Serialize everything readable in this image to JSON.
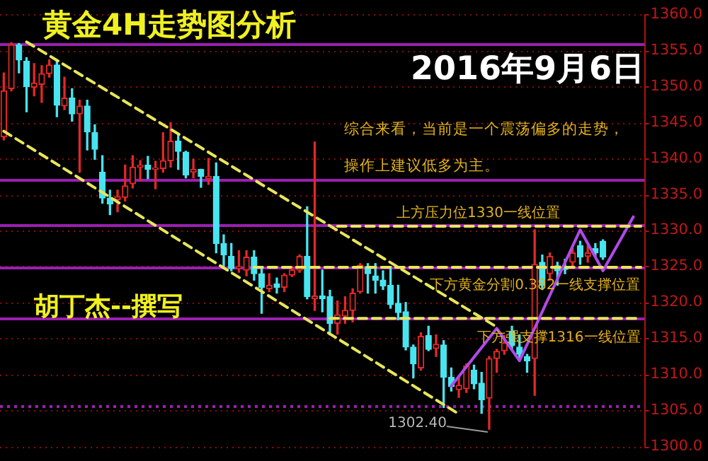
{
  "chart_data": {
    "type": "candlestick",
    "title": "黄金4H走势图分析",
    "subtitle": "2016年9月6日",
    "annotations": [
      "综合来看，当前是一个震荡偏多的走势，",
      "操作上建议低多为主。",
      {
        "text": "上方压力位1330一线位置",
        "y": 1330.6
      },
      {
        "text": "下方黄金分割0.382一线支撑位置",
        "y": 1324.9
      },
      {
        "text": "下方强支撑1316一线位置",
        "y": 1317.8
      },
      "胡丁杰--撰写",
      "1302.40"
    ],
    "categories": [
      null,
      null,
      null,
      null,
      null,
      null,
      null,
      null,
      null,
      null,
      null,
      null,
      null,
      null,
      null,
      null,
      null,
      null,
      null,
      null,
      null,
      null,
      null,
      null,
      null,
      null,
      null,
      null,
      null,
      null,
      null,
      null,
      null,
      null,
      null,
      null,
      null,
      null,
      null,
      null,
      null,
      null,
      null,
      null,
      null,
      null,
      null,
      null,
      null,
      null,
      null,
      null,
      null,
      null,
      null,
      null,
      null,
      null,
      null,
      null,
      null,
      null,
      null,
      null,
      null,
      null,
      null,
      null,
      null,
      null,
      null,
      null,
      null,
      null,
      null,
      null,
      null,
      null,
      null,
      null,
      null,
      null,
      null,
      null,
      null
    ],
    "ohlc": [
      [
        1343,
        1351.9,
        1342.6,
        1349.4
      ],
      [
        1349.7,
        1356.1,
        1349.4,
        1355.8
      ],
      [
        1355.8,
        1356,
        1351.9,
        1353.7
      ],
      [
        1353.5,
        1354,
        1346.5,
        1350
      ],
      [
        1349.9,
        1353.2,
        1348.7,
        1350.5
      ],
      [
        1350.3,
        1352.9,
        1347.8,
        1351.8
      ],
      [
        1351.8,
        1353.7,
        1351.3,
        1353
      ],
      [
        1353,
        1353.5,
        1345.8,
        1347.4
      ],
      [
        1347.3,
        1351.3,
        1346.8,
        1348.4
      ],
      [
        1348.4,
        1349.7,
        1345.2,
        1346.2
      ],
      [
        1346.2,
        1348.1,
        1338.1,
        1347.3
      ],
      [
        1347.3,
        1348.1,
        1341.2,
        1343.7
      ],
      [
        1343.6,
        1344.7,
        1339.9,
        1341.3
      ],
      [
        1338.1,
        1340.4,
        1333.8,
        1334.5
      ],
      [
        1334.5,
        1335.6,
        1332.2,
        1333.7
      ],
      [
        1334.3,
        1335.6,
        1332.6,
        1334.7
      ],
      [
        1334.6,
        1339.1,
        1334.1,
        1336.2
      ],
      [
        1336.5,
        1340.4,
        1335.9,
        1338.8
      ],
      [
        1338.8,
        1339.7,
        1336.9,
        1339.1
      ],
      [
        1339.1,
        1340.3,
        1337.2,
        1338.5
      ],
      [
        1338.5,
        1339.6,
        1335.8,
        1338.7
      ],
      [
        1338.6,
        1343.6,
        1338.1,
        1339.7
      ],
      [
        1339.7,
        1345,
        1338.8,
        1342.4
      ],
      [
        1342.4,
        1343.3,
        1338.5,
        1341
      ],
      [
        1340.9,
        1341,
        1337.3,
        1337.7
      ],
      [
        1338.1,
        1339.9,
        1337.3,
        1338.5
      ],
      [
        1338.5,
        1338.5,
        1336,
        1337.5
      ],
      [
        1337.2,
        1340,
        1336.4,
        1337.5
      ],
      [
        1337.5,
        1339.4,
        1326.9,
        1328.2
      ],
      [
        1328.2,
        1329.4,
        1325,
        1326.6
      ],
      [
        1326.4,
        1328.2,
        1324.4,
        1324.7
      ],
      [
        1324.7,
        1327.2,
        1324.2,
        1325
      ],
      [
        1324.5,
        1327.2,
        1323.7,
        1326.3
      ],
      [
        1326.3,
        1327.2,
        1323.1,
        1324
      ],
      [
        1324,
        1325,
        1318.5,
        1322.1
      ],
      [
        1321.9,
        1324,
        1321.5,
        1322.4
      ],
      [
        1322.6,
        1323.4,
        1321.3,
        1322.1
      ],
      [
        1322.1,
        1324,
        1321.5,
        1323.8
      ],
      [
        1323.8,
        1325,
        1323.6,
        1324.5
      ],
      [
        1324.5,
        1326.6,
        1324.2,
        1326.4
      ],
      [
        1326.4,
        1333.3,
        1320.5,
        1320.8
      ],
      [
        1320.5,
        1342.3,
        1318.9,
        1320.9
      ],
      [
        1320.9,
        1324.5,
        1318.7,
        1320.5
      ],
      [
        1320.8,
        1321.7,
        1315.5,
        1317.1
      ],
      [
        1317.1,
        1320.2,
        1315.6,
        1318.3
      ],
      [
        1318.1,
        1320.8,
        1317.1,
        1318.9
      ],
      [
        1318.9,
        1321.9,
        1317.3,
        1321.3
      ],
      [
        1321.5,
        1325.4,
        1321.3,
        1325.2
      ],
      [
        1325,
        1325.4,
        1321.3,
        1324
      ],
      [
        1323.7,
        1325.4,
        1321.3,
        1323.1
      ],
      [
        1323.1,
        1324.4,
        1321.8,
        1322.3
      ],
      [
        1322.4,
        1325,
        1319.2,
        1319.7
      ],
      [
        1319.9,
        1322.4,
        1317.6,
        1318.6
      ],
      [
        1318.7,
        1320,
        1313.4,
        1313.8
      ],
      [
        1313.8,
        1314.1,
        1309.5,
        1311.5
      ],
      [
        1310.9,
        1315.8,
        1310.6,
        1315.3
      ],
      [
        1315.4,
        1316.7,
        1313.3,
        1313.5
      ],
      [
        1313.6,
        1315.5,
        1312.5,
        1314.2
      ],
      [
        1314.1,
        1314.7,
        1305.4,
        1309.6
      ],
      [
        1309.6,
        1310.9,
        1307.7,
        1308.3
      ],
      [
        1307.9,
        1309.5,
        1306.8,
        1308.5
      ],
      [
        1308,
        1311.5,
        1307.5,
        1311.2
      ],
      [
        1310.6,
        1311.3,
        1308,
        1308.7
      ],
      [
        1308.8,
        1310.3,
        1304.6,
        1306.5
      ],
      [
        1306.7,
        1312.5,
        1302.4,
        1312.2
      ],
      [
        1312.2,
        1313.5,
        1310.3,
        1313.2
      ],
      [
        1313.3,
        1315.4,
        1312.8,
        1314.4
      ],
      [
        1316,
        1316.7,
        1313.5,
        1314
      ],
      [
        1313.8,
        1315.5,
        1312.3,
        1312.8
      ],
      [
        1312.5,
        1312.8,
        1310.3,
        1311.9
      ],
      [
        1312.2,
        1330.1,
        1307.1,
        1325.3
      ],
      [
        1325.6,
        1326.6,
        1321.8,
        1322.4
      ],
      [
        1324,
        1326.9,
        1323.1,
        1326.4
      ],
      [
        1325.1,
        1325.6,
        1322.4,
        1324.4
      ],
      [
        1325,
        1326,
        1324,
        1324.6
      ],
      [
        1325.6,
        1327.5,
        1325,
        1326.9
      ],
      [
        1327.9,
        1328.5,
        1325.3,
        1326.3
      ],
      [
        1326.4,
        1327.9,
        1325.6,
        1326.9
      ],
      [
        1327.5,
        1328.2,
        1326.3,
        1326.9
      ],
      [
        1328.5,
        1328.7,
        1326,
        1326.3
      ],
      null,
      null,
      null,
      null,
      null
    ],
    "series": [
      {
        "type": "line",
        "color": "#e6e65a",
        "line_style": "dashed",
        "values": [
          null,
          null,
          null,
          1356.2,
          null,
          null,
          null,
          null,
          null,
          null,
          null,
          null,
          null,
          null,
          null,
          null,
          null,
          null,
          null,
          null,
          null,
          null,
          null,
          null,
          null,
          null,
          null,
          null,
          null,
          null,
          null,
          null,
          null,
          null,
          null,
          null,
          null,
          null,
          null,
          null,
          null,
          null,
          null,
          null,
          null,
          null,
          null,
          null,
          null,
          null,
          null,
          null,
          null,
          null,
          null,
          null,
          null,
          null,
          null,
          null,
          null,
          null,
          null,
          null,
          null,
          1316.6,
          null,
          null,
          null,
          null,
          null,
          null,
          null,
          null,
          null,
          null,
          null,
          null,
          null,
          null,
          null,
          null,
          null,
          null,
          null
        ]
      },
      {
        "type": "line",
        "color": "#e6e65a",
        "line_style": "dashed",
        "values": [
          1343.8,
          null,
          null,
          null,
          null,
          null,
          null,
          null,
          null,
          null,
          null,
          null,
          null,
          null,
          null,
          null,
          null,
          null,
          null,
          null,
          null,
          null,
          null,
          null,
          null,
          null,
          null,
          null,
          null,
          null,
          null,
          null,
          null,
          null,
          null,
          null,
          null,
          null,
          null,
          null,
          null,
          null,
          null,
          null,
          null,
          null,
          null,
          null,
          null,
          null,
          null,
          null,
          null,
          null,
          null,
          null,
          null,
          null,
          null,
          null,
          1304.5,
          null,
          null,
          null,
          null,
          null,
          null,
          null,
          null,
          null,
          null,
          null,
          null,
          null,
          null,
          null,
          null,
          null,
          null,
          null,
          null,
          null,
          null,
          null,
          null
        ]
      },
      {
        "type": "line",
        "color": "#e6e65a",
        "line_style": "dashed",
        "values": [
          null,
          null,
          null,
          null,
          null,
          null,
          null,
          null,
          null,
          null,
          null,
          null,
          null,
          null,
          null,
          null,
          null,
          null,
          null,
          null,
          null,
          null,
          null,
          null,
          null,
          null,
          null,
          null,
          null,
          null,
          null,
          null,
          null,
          null,
          null,
          null,
          null,
          null,
          null,
          null,
          null,
          null,
          null,
          null,
          1330.6,
          null,
          null,
          null,
          null,
          null,
          null,
          null,
          null,
          null,
          null,
          null,
          null,
          null,
          null,
          null,
          null,
          null,
          null,
          null,
          null,
          null,
          null,
          null,
          null,
          null,
          null,
          null,
          null,
          null,
          null,
          null,
          null,
          null,
          null,
          null,
          null,
          null,
          null,
          null,
          1330.6
        ]
      },
      {
        "type": "line",
        "color": "#e6e65a",
        "line_style": "dashed",
        "values": [
          null,
          null,
          null,
          null,
          null,
          null,
          null,
          null,
          null,
          null,
          null,
          null,
          null,
          null,
          null,
          null,
          null,
          null,
          null,
          null,
          null,
          null,
          null,
          null,
          null,
          null,
          null,
          null,
          null,
          null,
          null,
          null,
          null,
          1324.9,
          null,
          null,
          null,
          null,
          null,
          null,
          null,
          null,
          null,
          null,
          null,
          null,
          null,
          null,
          null,
          null,
          null,
          null,
          null,
          null,
          null,
          null,
          null,
          null,
          null,
          null,
          null,
          null,
          null,
          null,
          null,
          null,
          null,
          null,
          null,
          null,
          null,
          null,
          null,
          null,
          null,
          null,
          null,
          null,
          null,
          null,
          null,
          null,
          null,
          null,
          1324.9
        ]
      },
      {
        "type": "line",
        "color": "#e6e65a",
        "line_style": "dashed",
        "values": [
          null,
          null,
          null,
          null,
          null,
          null,
          null,
          null,
          null,
          null,
          null,
          null,
          null,
          null,
          null,
          null,
          null,
          null,
          null,
          null,
          null,
          null,
          null,
          null,
          null,
          null,
          null,
          null,
          null,
          null,
          null,
          null,
          null,
          null,
          null,
          null,
          null,
          null,
          null,
          null,
          null,
          null,
          null,
          1317.8,
          null,
          null,
          null,
          null,
          null,
          null,
          null,
          null,
          null,
          null,
          null,
          null,
          null,
          null,
          null,
          null,
          null,
          null,
          null,
          null,
          null,
          null,
          null,
          null,
          null,
          null,
          null,
          null,
          null,
          null,
          null,
          null,
          null,
          null,
          null,
          null,
          null,
          null,
          null,
          null,
          1317.8
        ]
      },
      {
        "type": "line",
        "color": "#b04ae8",
        "line_style": "solid",
        "values": [
          null,
          null,
          null,
          null,
          null,
          null,
          null,
          null,
          null,
          null,
          null,
          null,
          null,
          null,
          null,
          null,
          null,
          null,
          null,
          null,
          null,
          null,
          null,
          null,
          null,
          null,
          null,
          null,
          null,
          null,
          null,
          null,
          null,
          null,
          null,
          null,
          null,
          null,
          null,
          null,
          null,
          null,
          null,
          null,
          null,
          null,
          null,
          null,
          null,
          null,
          null,
          null,
          null,
          null,
          null,
          null,
          null,
          null,
          null,
          1308.4,
          null,
          null,
          null,
          null,
          null,
          1316.4,
          null,
          null,
          1311.9,
          null,
          null,
          null,
          null,
          null,
          null,
          null,
          1330.1,
          null,
          null,
          1324.4,
          null,
          null,
          null,
          1331.9,
          null
        ]
      }
    ],
    "ref_lines": [
      {
        "axis": "y",
        "value": 1356,
        "color": "#9b1fb0"
      },
      {
        "axis": "y",
        "value": 1337,
        "color": "#9b1fb0"
      },
      {
        "axis": "y",
        "value": 1330.7,
        "color": "#9b1fb0"
      },
      {
        "axis": "y",
        "value": 1324.9,
        "color": "#9b1fb0"
      },
      {
        "axis": "y",
        "value": 1317.8,
        "color": "#9b1fb0"
      },
      {
        "axis": "y",
        "value": 1305.6,
        "color": "#9b1fb0",
        "line_style": "dotted"
      }
    ],
    "ylim": [
      1300,
      1360
    ],
    "yticks": [
      {
        "value": 1300,
        "label": "1300.0"
      },
      {
        "value": 1305,
        "label": "1305.0"
      },
      {
        "value": 1310,
        "label": "1310.0"
      },
      {
        "value": 1315,
        "label": "1315.0"
      },
      {
        "value": 1320,
        "label": "1320.0"
      },
      {
        "value": 1325,
        "label": "1325.0"
      },
      {
        "value": 1330,
        "label": "1330.0"
      },
      {
        "value": 1335,
        "label": "1335.0"
      },
      {
        "value": 1340,
        "label": "1340.0"
      },
      {
        "value": 1345,
        "label": "1345.0"
      },
      {
        "value": 1350,
        "label": "1350.0"
      },
      {
        "value": 1355,
        "label": "1355.0"
      },
      {
        "value": 1360,
        "label": "1360.0"
      }
    ],
    "grid": "y",
    "legend": false,
    "marker": "none",
    "tick_labels": "y"
  }
}
